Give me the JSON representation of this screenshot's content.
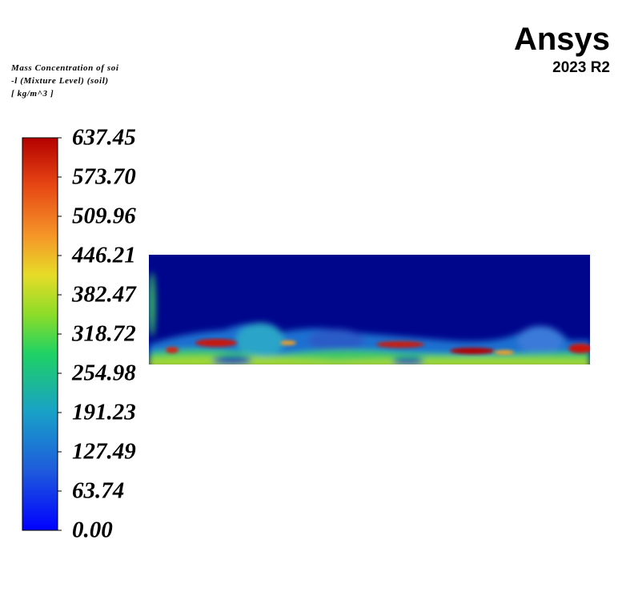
{
  "legend": {
    "title": [
      "Mass Concentration of soi",
      "-l (Mixture Level)  (soil)",
      "[ kg/m^3 ]"
    ],
    "ticks": [
      "637.45",
      "573.70",
      "509.96",
      "446.21",
      "382.47",
      "318.72",
      "254.98",
      "191.23",
      "127.49",
      "63.74",
      "0.00"
    ]
  },
  "logo": {
    "name": "Ansys",
    "version": "2023 R2"
  }
}
